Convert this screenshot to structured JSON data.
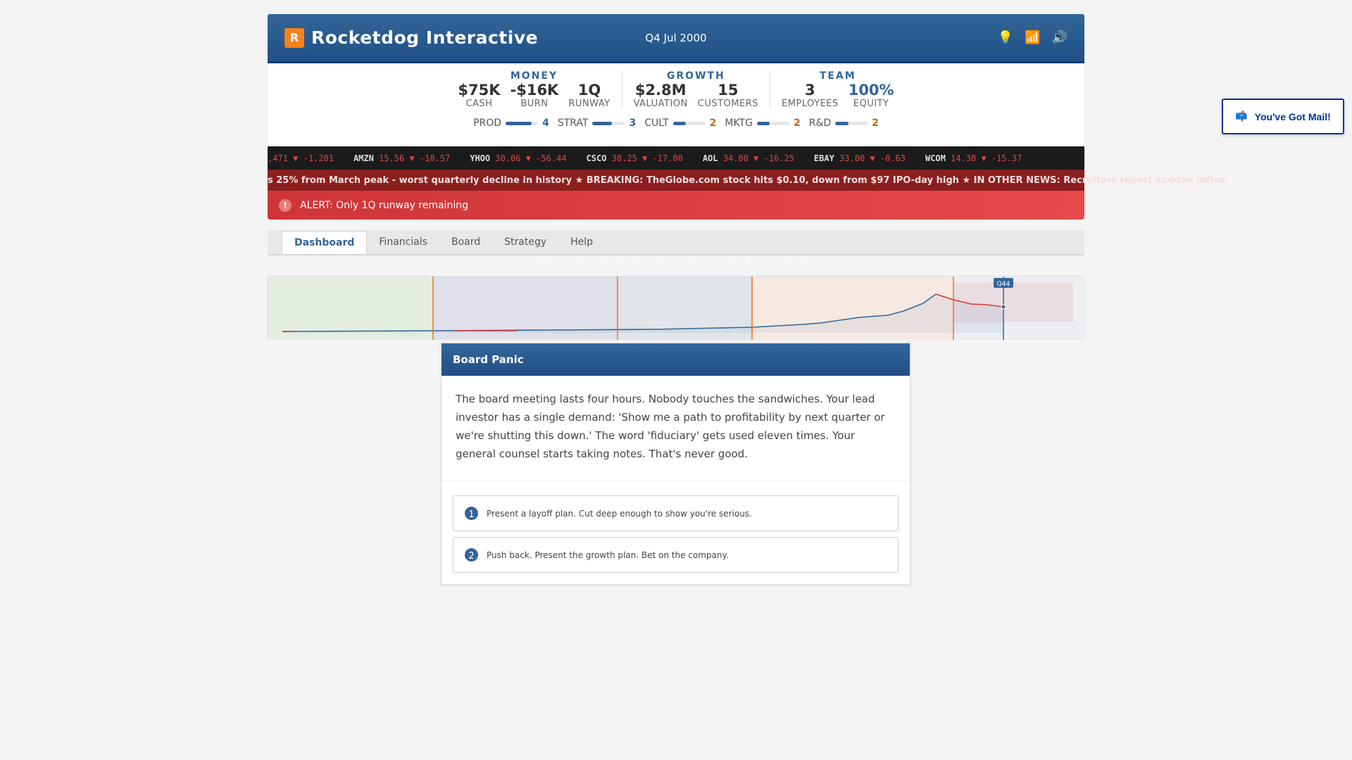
{
  "header": {
    "logo_letter": "R",
    "title": "Rocketdog Interactive",
    "date": "Q4 Jul 2000",
    "icons": [
      "lightbulb-icon",
      "bar-chart-icon",
      "speaker-icon"
    ]
  },
  "stats": {
    "groups": [
      {
        "name": "MONEY",
        "items": [
          {
            "value": "$75K",
            "label": "CASH"
          },
          {
            "value": "-$16K",
            "label": "BURN"
          },
          {
            "value": "1Q",
            "label": "RUNWAY"
          }
        ]
      },
      {
        "name": "GROWTH",
        "items": [
          {
            "value": "$2.8M",
            "label": "VALUATION"
          },
          {
            "value": "15",
            "label": "CUSTOMERS"
          }
        ]
      },
      {
        "name": "TEAM",
        "items": [
          {
            "value": "3",
            "label": "EMPLOYEES"
          },
          {
            "value": "100%",
            "label": "EQUITY"
          }
        ]
      }
    ],
    "skills": [
      {
        "label": "PROD",
        "value": "4",
        "color": "#336699",
        "fill": 0.8
      },
      {
        "label": "STRAT",
        "value": "3",
        "color": "#336699",
        "fill": 0.6
      },
      {
        "label": "CULT",
        "value": "2",
        "color": "#cc6600",
        "fill": 0.4
      },
      {
        "label": "MKTG",
        "value": "2",
        "color": "#cc6600",
        "fill": 0.4
      },
      {
        "label": "R&D",
        "value": "2",
        "color": "#cc6600",
        "fill": 0.4
      }
    ]
  },
  "ticker": [
    {
      "sym": "",
      "price": ",471",
      "change": "▼ -1,201"
    },
    {
      "sym": "AMZN",
      "price": "15.56",
      "change": "▼ -18.57"
    },
    {
      "sym": "YHOO",
      "price": "30.06",
      "change": "▼ -56.44"
    },
    {
      "sym": "CSCO",
      "price": "38.25",
      "change": "▼ -17.00"
    },
    {
      "sym": "AOL",
      "price": "34.00",
      "change": "▼ -16.25"
    },
    {
      "sym": "EBAY",
      "price": "33.00",
      "change": "▼ -0.63"
    },
    {
      "sym": "WCOM",
      "price": "14.38",
      "change": "▼ -15.37"
    }
  ],
  "news": "s 25% from March peak - worst quarterly decline in history ★ BREAKING: TheGlobe.com stock hits $0.10, down from $97 IPO-day high ★ IN OTHER NEWS: Recruiters report sudden influx",
  "alert": {
    "icon": "!",
    "text": "ALERT: Only 1Q runway remaining"
  },
  "tabs": [
    {
      "label": "Dashboard",
      "active": true
    },
    {
      "label": "Financials"
    },
    {
      "label": "Board"
    },
    {
      "label": "Strategy"
    },
    {
      "label": "Help"
    }
  ],
  "flavor": "The market bleeds. You don't. That counts for something.",
  "timeline": {
    "marker_label": "Q44"
  },
  "modal": {
    "title": "Board Panic",
    "body": "The board meeting lasts four hours. Nobody touches the sandwiches. Your lead investor has a single demand: 'Show me a path to profitability by next quarter or we're shutting this down.' The word 'fiduciary' gets used eleven times. Your general counsel starts taking notes. That's never good.",
    "choices": [
      {
        "num": "1",
        "text": "Present a layoff plan. Cut deep enough to show you're serious."
      },
      {
        "num": "2",
        "text": "Push back. Present the growth plan. Bet on the company."
      }
    ]
  },
  "mail": {
    "icon": "📫",
    "label": "You've Got Mail!"
  }
}
